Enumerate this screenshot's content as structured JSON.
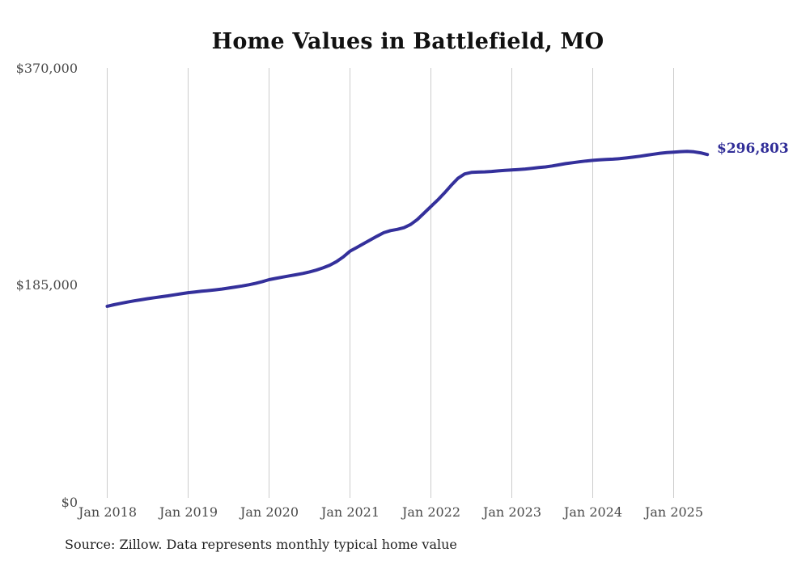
{
  "title": "Home Values in Battlefield, MO",
  "source_note": "Source: Zillow. Data represents monthly typical home value",
  "latest_value_label": "$296,803",
  "colors": {
    "line": "#34309b",
    "latest_label": "#312e98",
    "grid": "#cccccc",
    "axis_text": "#4a4a4a",
    "title_text": "#111111",
    "source_text": "#1f1f1f",
    "background": "#ffffff"
  },
  "chart_data": {
    "type": "line",
    "title": "Home Values in Battlefield, MO",
    "xlabel": "",
    "ylabel": "",
    "grid": "vertical-only",
    "legend": "none",
    "x_axis": {
      "tick_labels": [
        "Jan 2018",
        "Jan 2019",
        "Jan 2020",
        "Jan 2021",
        "Jan 2022",
        "Jan 2023",
        "Jan 2024",
        "Jan 2025"
      ],
      "frequency": "monthly",
      "range": [
        "2018-01",
        "2025-06"
      ]
    },
    "y_axis": {
      "tick_labels": [
        "$0",
        "$185,000",
        "$370,000"
      ],
      "tick_values": [
        0,
        185000,
        370000
      ],
      "range": [
        0,
        370000
      ]
    },
    "series": [
      {
        "name": "Typical home value (USD)",
        "latest_value": 296803,
        "months": [
          "2018-01",
          "2018-02",
          "2018-03",
          "2018-04",
          "2018-05",
          "2018-06",
          "2018-07",
          "2018-08",
          "2018-09",
          "2018-10",
          "2018-11",
          "2018-12",
          "2019-01",
          "2019-02",
          "2019-03",
          "2019-04",
          "2019-05",
          "2019-06",
          "2019-07",
          "2019-08",
          "2019-09",
          "2019-10",
          "2019-11",
          "2019-12",
          "2020-01",
          "2020-02",
          "2020-03",
          "2020-04",
          "2020-05",
          "2020-06",
          "2020-07",
          "2020-08",
          "2020-09",
          "2020-10",
          "2020-11",
          "2020-12",
          "2021-01",
          "2021-02",
          "2021-03",
          "2021-04",
          "2021-05",
          "2021-06",
          "2021-07",
          "2021-08",
          "2021-09",
          "2021-10",
          "2021-11",
          "2021-12",
          "2022-01",
          "2022-02",
          "2022-03",
          "2022-04",
          "2022-05",
          "2022-06",
          "2022-07",
          "2022-08",
          "2022-09",
          "2022-10",
          "2022-11",
          "2022-12",
          "2023-01",
          "2023-02",
          "2023-03",
          "2023-04",
          "2023-05",
          "2023-06",
          "2023-07",
          "2023-08",
          "2023-09",
          "2023-10",
          "2023-11",
          "2023-12",
          "2024-01",
          "2024-02",
          "2024-03",
          "2024-04",
          "2024-05",
          "2024-06",
          "2024-07",
          "2024-08",
          "2024-09",
          "2024-10",
          "2024-11",
          "2024-12",
          "2025-01",
          "2025-02",
          "2025-03",
          "2025-04",
          "2025-05",
          "2025-06"
        ],
        "values": [
          167500,
          168800,
          170000,
          171100,
          172100,
          173000,
          174000,
          174800,
          175600,
          176400,
          177300,
          178200,
          179100,
          179700,
          180300,
          180900,
          181500,
          182200,
          183000,
          183900,
          184800,
          185800,
          187000,
          188500,
          190200,
          191300,
          192400,
          193400,
          194400,
          195500,
          196800,
          198300,
          200200,
          202500,
          205500,
          209500,
          214400,
          217600,
          220800,
          224000,
          227200,
          230200,
          232000,
          233000,
          234500,
          237200,
          241500,
          247000,
          252500,
          258000,
          264000,
          270500,
          276500,
          280300,
          281600,
          281900,
          282100,
          282400,
          282900,
          283300,
          283700,
          284100,
          284500,
          285100,
          285700,
          286300,
          287100,
          288100,
          289100,
          289900,
          290600,
          291300,
          291900,
          292300,
          292600,
          292900,
          293300,
          293900,
          294600,
          295400,
          296300,
          297100,
          297900,
          298500,
          298900,
          299300,
          299500,
          299200,
          298300,
          296803
        ]
      }
    ]
  }
}
